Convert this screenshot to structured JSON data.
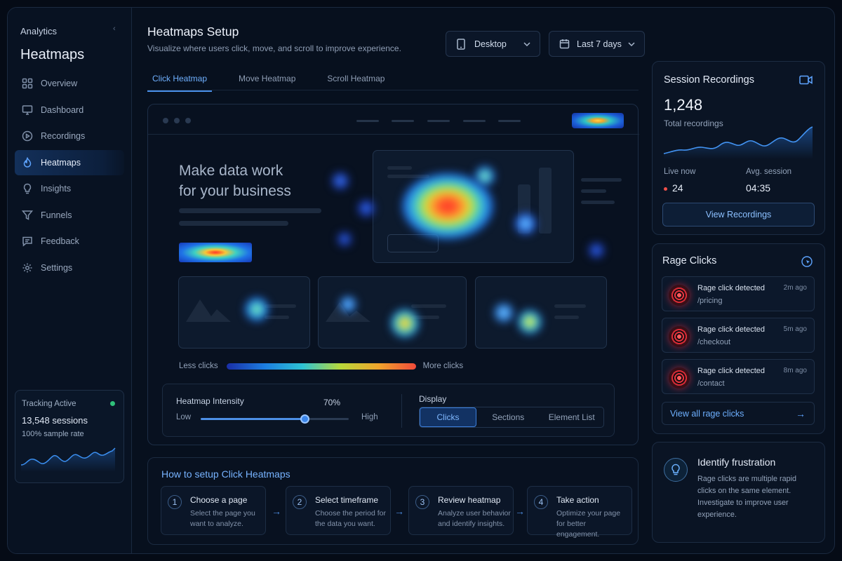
{
  "sidebar": {
    "brand": "Analytics",
    "title": "Heatmaps",
    "items": [
      {
        "label": "Overview",
        "icon": "grid-icon"
      },
      {
        "label": "Dashboard",
        "icon": "monitor-icon"
      },
      {
        "label": "Recordings",
        "icon": "play-circle-icon"
      },
      {
        "label": "Heatmaps",
        "icon": "flame-icon",
        "active": true
      },
      {
        "label": "Insights",
        "icon": "lightbulb-icon"
      },
      {
        "label": "Funnels",
        "icon": "funnel-icon"
      },
      {
        "label": "Feedback",
        "icon": "chat-icon"
      },
      {
        "label": "Settings",
        "icon": "gear-icon"
      }
    ],
    "tracking": {
      "title": "Tracking Active",
      "sessions": "13,548 sessions",
      "sample": "100% sample rate",
      "status_color": "#2fc07a"
    }
  },
  "header": {
    "title": "Heatmaps Setup",
    "subtitle": "Visualize where users click, move, and scroll to improve experience.",
    "device": "Desktop",
    "range": "Last 7 days"
  },
  "tabs": [
    "Click Heatmap",
    "Move Heatmap",
    "Scroll Heatmap"
  ],
  "heatmap": {
    "hero_line1": "Make data work",
    "hero_line2": "for your business",
    "legend_less": "Less clicks",
    "legend_more": "More clicks",
    "intensity_label": "Heatmap Intensity",
    "intensity_value": "70%",
    "intensity_fraction": 0.7,
    "low": "Low",
    "high": "High",
    "display_label": "Display",
    "display_options": [
      "Clicks",
      "Sections",
      "Element List"
    ],
    "display_selected": "Clicks"
  },
  "steps": {
    "title": "How to setup Click Heatmaps",
    "items": [
      {
        "num": "1",
        "title": "Choose a page",
        "desc": "Select the page you want to analyze."
      },
      {
        "num": "2",
        "title": "Select timeframe",
        "desc": "Choose the period for the data you want."
      },
      {
        "num": "3",
        "title": "Review heatmap",
        "desc": "Analyze user behavior and identify insights."
      },
      {
        "num": "4",
        "title": "Take action",
        "desc": "Optimize your page for better engagement."
      }
    ]
  },
  "recordings": {
    "title": "Session Recordings",
    "total": "1,248",
    "total_label": "Total recordings",
    "live_label": "Live now",
    "live_value": "24",
    "avg_label": "Avg. session",
    "avg_value": "04:35",
    "button": "View Recordings"
  },
  "rage": {
    "title": "Rage Clicks",
    "items": [
      {
        "title": "Rage click detected",
        "path": "/pricing",
        "time": "2m ago"
      },
      {
        "title": "Rage click detected",
        "path": "/checkout",
        "time": "5m ago"
      },
      {
        "title": "Rage click detected",
        "path": "/contact",
        "time": "8m ago"
      }
    ],
    "link": "View all rage clicks"
  },
  "frustration": {
    "title": "Identify frustration",
    "body": "Rage clicks are multiple rapid clicks on the same element. Investigate to improve user experience."
  }
}
